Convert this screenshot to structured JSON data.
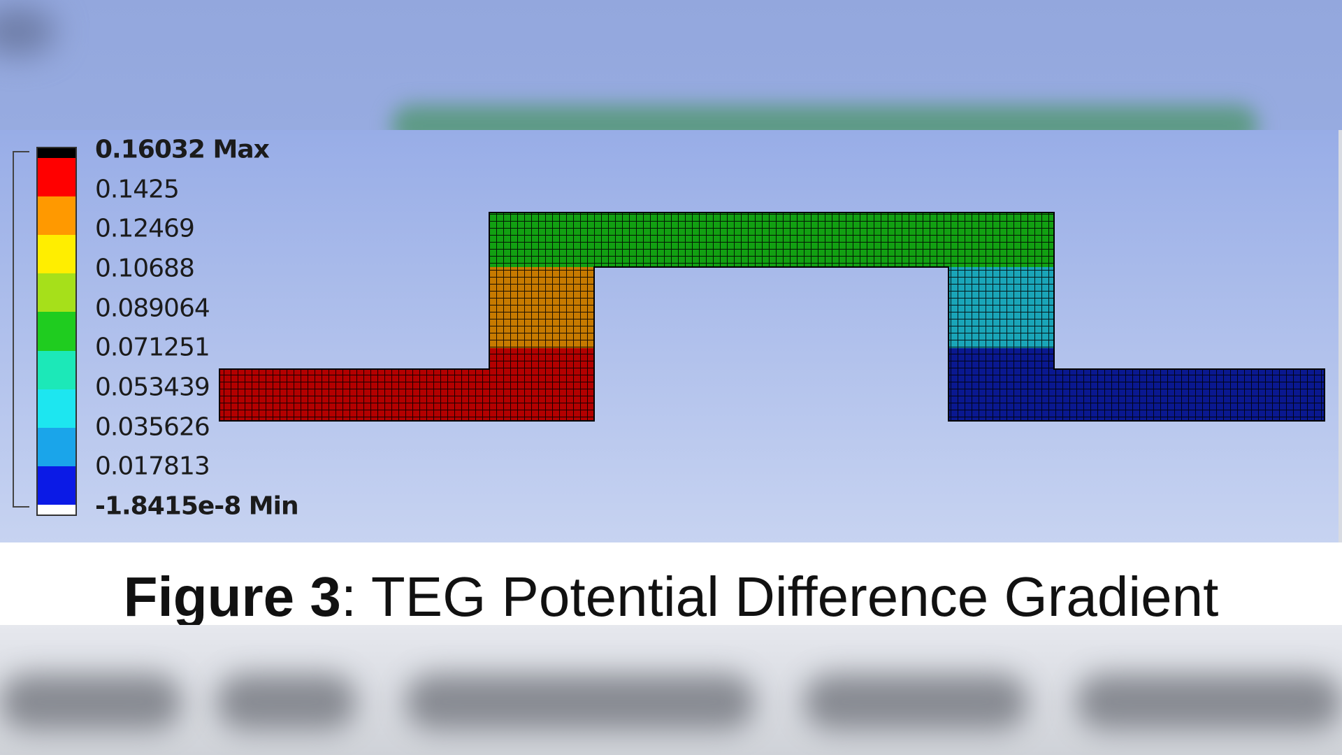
{
  "legend": {
    "max_label": "0.16032 Max",
    "min_label": "-1.8415e-8 Min",
    "levels": [
      "0.1425",
      "0.12469",
      "0.10688",
      "0.089064",
      "0.071251",
      "0.053439",
      "0.035626",
      "0.017813"
    ],
    "colors": [
      "#000000",
      "#ff0000",
      "#ff9900",
      "#ffee00",
      "#a6e01a",
      "#1fcc1f",
      "#1ce8b8",
      "#1de6f0",
      "#1aa5ea",
      "#0b1ae6",
      "#ffffff"
    ]
  },
  "geometry_colors": {
    "left_leg": "#b30000",
    "left_post_lower": "#b30000",
    "left_post_upper": "#c77a00",
    "bridge": "#12a012",
    "right_post_upper": "#1aa5b8",
    "right_leg": "#0a1890"
  },
  "caption": {
    "bold": "Figure 3",
    "rest": ": TEG Potential Difference Gradient"
  }
}
